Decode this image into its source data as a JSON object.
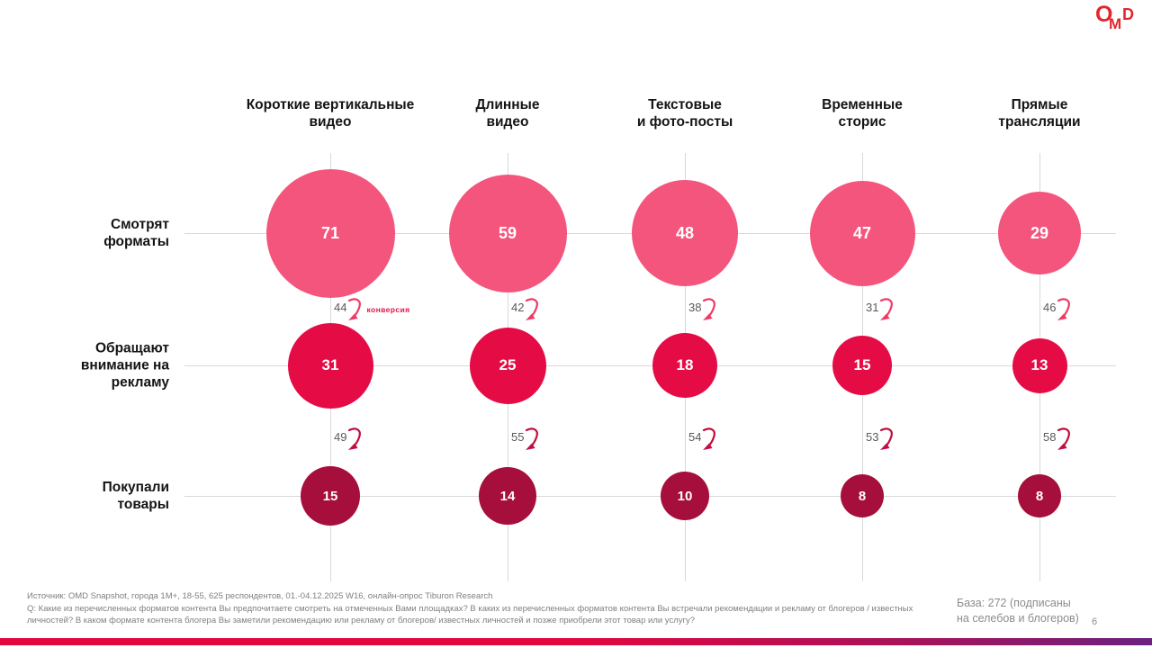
{
  "logo": {
    "o": "O",
    "m": "M",
    "d": "D",
    "color": "#E1272E"
  },
  "chart_data": {
    "type": "bubble",
    "title": "",
    "categories": [
      "Короткие вертикальные\nвидео",
      "Длинные\nвидео",
      "Текстовые\nи фото-посты",
      "Временные\nсторис",
      "Прямые\nтрансляции"
    ],
    "rows": [
      {
        "label": "Смотрят\nформаты",
        "values": [
          71,
          59,
          48,
          47,
          29
        ],
        "color": "#F4557D"
      },
      {
        "label": "Обращают\nвнимание на\nрекламу",
        "values": [
          31,
          25,
          18,
          15,
          13
        ],
        "color": "#E50C46"
      },
      {
        "label": "Покупали\nтовары",
        "values": [
          15,
          14,
          10,
          8,
          8
        ],
        "color": "#A60E3B"
      }
    ],
    "conversions": [
      {
        "label": "конверсия",
        "values": [
          44,
          42,
          38,
          31,
          46
        ],
        "arrow_color": "#EE3A66"
      },
      {
        "label": "",
        "values": [
          49,
          55,
          54,
          53,
          58
        ],
        "arrow_color": "#C10D3F"
      }
    ]
  },
  "footer": {
    "source": "Источник: OMD Snapshot, города 1М+, 18-55, 625 респондентов, 01.-04.12.2025 W16, онлайн-опрос Tiburon Research",
    "question": "Q: Какие из перечисленных форматов контента Вы предпочитаете смотреть на отмеченных Вами площадках? В каких из перечисленных форматов контента Вы встречали рекомендации и рекламу от блогеров / известных личностей? В каком формате контента блогера Вы заметили рекомендацию или рекламу от блогеров/ известных личностей и позже приобрели этот товар или услугу?",
    "base": "База: 272 (подписаны\nна селебов и блогеров)",
    "page_number": "6"
  },
  "colors": {
    "grid_line": "#D9D9D9",
    "conversion_number": "#595959",
    "conversion_label": "#E4124B",
    "footer_text": "#7F7F7F",
    "bottom_bar_gradient": [
      "#E3063F",
      "#A5135B",
      "#6B2180"
    ]
  }
}
